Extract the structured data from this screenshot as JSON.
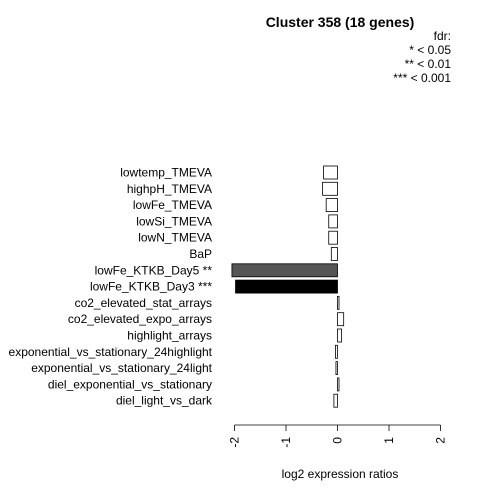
{
  "chart_data": {
    "type": "bar",
    "orientation": "horizontal",
    "title": "Cluster 358 (18 genes)",
    "xlabel": "log2 expression ratios",
    "ylabel": "",
    "xlim": [
      -2,
      2
    ],
    "x_ticks": [
      "-2",
      "-1",
      "0",
      "1",
      "2"
    ],
    "x_tick_values": [
      -2,
      -1,
      0,
      1,
      2
    ],
    "grid": false,
    "legend_placement": "top-right",
    "legend": [
      "fdr:",
      "* < 0.05",
      "** < 0.01",
      "*** < 0.001"
    ],
    "categories": [
      "lowtemp_TMEVA",
      "highpH_TMEVA",
      "lowFe_TMEVA",
      "lowSi_TMEVA",
      "lowN_TMEVA",
      "BaP",
      "lowFe_KTKB_Day5 **",
      "lowFe_KTKB_Day3 ***",
      "co2_elevated_stat_arrays",
      "co2_elevated_expo_arrays",
      "highlight_arrays",
      "exponential_vs_stationary_24highlight",
      "exponential_vs_stationary_24light",
      "diel_exponential_vs_stationary",
      "diel_light_vs_dark"
    ],
    "values": [
      -0.27,
      -0.29,
      -0.22,
      -0.17,
      -0.17,
      -0.12,
      -2.05,
      -1.98,
      0.02,
      0.12,
      0.08,
      -0.04,
      -0.03,
      0.02,
      -0.07
    ],
    "bar_colors": [
      "#ffffff",
      "#ffffff",
      "#ffffff",
      "#ffffff",
      "#ffffff",
      "#ffffff",
      "#555555",
      "#000000",
      "#ffffff",
      "#ffffff",
      "#ffffff",
      "#ffffff",
      "#ffffff",
      "#ffffff",
      "#ffffff"
    ]
  }
}
